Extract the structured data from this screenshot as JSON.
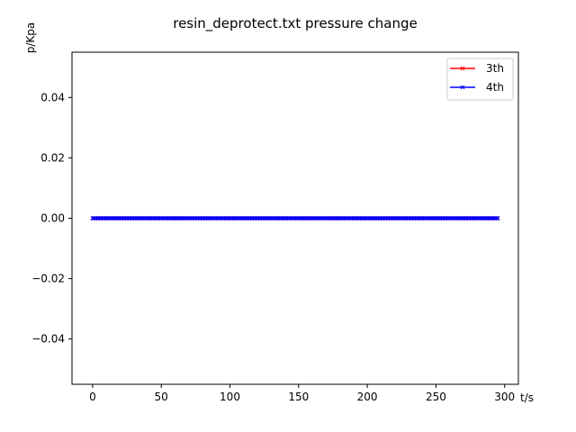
{
  "chart_data": {
    "type": "line",
    "title": "resin_deprotect.txt pressure change",
    "xlabel": "t/s",
    "ylabel": "p/Kpa",
    "xlim": [
      -15,
      310
    ],
    "ylim": [
      -0.055,
      0.055
    ],
    "xticks": [
      0,
      50,
      100,
      150,
      200,
      250,
      300
    ],
    "xtick_labels": [
      "0",
      "50",
      "100",
      "150",
      "200",
      "250",
      "300"
    ],
    "yticks": [
      -0.04,
      -0.02,
      0.0,
      0.02,
      0.04
    ],
    "ytick_labels": [
      "−0.04",
      "−0.02",
      "0.00",
      "0.02",
      "0.04"
    ],
    "grid": false,
    "legend": "top-right",
    "x_start": 0,
    "x_end": 295,
    "x_step": 1,
    "series": [
      {
        "name": "3th",
        "color": "#ff0000",
        "marker": "x",
        "y_constant": 0.0
      },
      {
        "name": "4th",
        "color": "#0000ff",
        "marker": "x",
        "y_constant": 0.0
      }
    ]
  }
}
